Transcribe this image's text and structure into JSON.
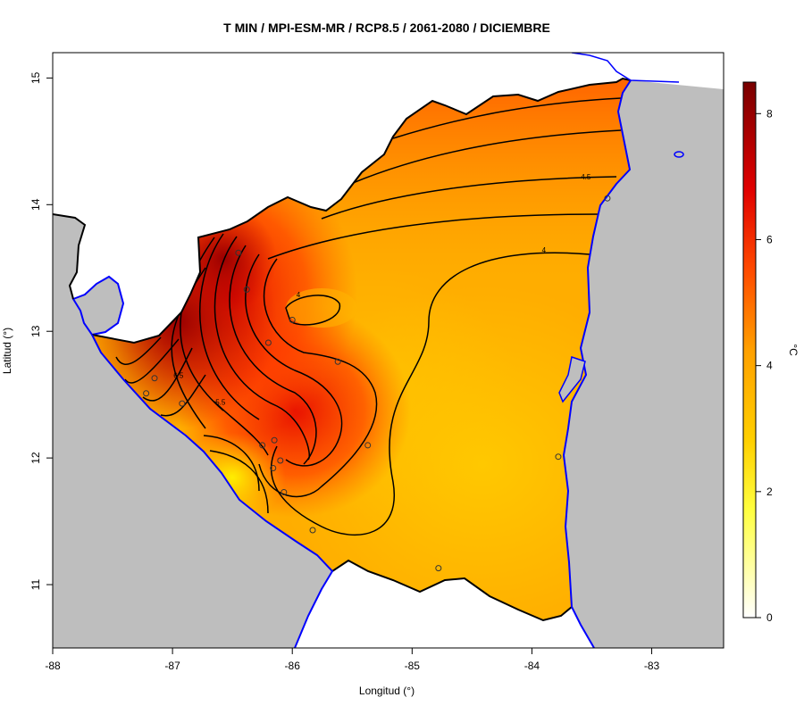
{
  "title": "T MIN / MPI-ESM-MR / RCP8.5 / 2061-2080 / DICIEMBRE",
  "xlabel": "Longitud (°)",
  "ylabel": "Latitud (°)",
  "colorbar": {
    "label": "°C",
    "ticks": [
      "0",
      "2",
      "4",
      "6",
      "8"
    ],
    "range": [
      0,
      8.5
    ],
    "colors": [
      "#ffffff",
      "#ffff00",
      "#ffc400",
      "#ff8c00",
      "#ff2a00",
      "#cc0000",
      "#7a0000"
    ]
  },
  "axes": {
    "x_ticks": [
      "-88",
      "-87",
      "-86",
      "-85",
      "-84",
      "-83"
    ],
    "y_ticks": [
      "11",
      "12",
      "13",
      "14",
      "15"
    ],
    "xlim": [
      -88,
      -82.4
    ],
    "ylim": [
      10.5,
      15.2
    ]
  },
  "colors": {
    "land_neighbors": "#bebebe",
    "coastline": "#0000ff",
    "border": "#000000",
    "contour": "#000000"
  },
  "contour_labels": [
    {
      "text": "4.5",
      "lon": -83.55,
      "lat": 14.2
    },
    {
      "text": "4",
      "lon": -83.9,
      "lat": 13.62
    },
    {
      "text": "4",
      "lon": -85.95,
      "lat": 13.27
    },
    {
      "text": "5.5",
      "lon": -86.6,
      "lat": 12.42
    },
    {
      "text": "6.5",
      "lon": -86.95,
      "lat": 12.63
    }
  ],
  "stations": [
    {
      "lon": -86.45,
      "lat": 13.62
    },
    {
      "lon": -86.38,
      "lat": 13.33
    },
    {
      "lon": -86.0,
      "lat": 13.09
    },
    {
      "lon": -86.2,
      "lat": 12.91
    },
    {
      "lon": -85.62,
      "lat": 12.76
    },
    {
      "lon": -87.15,
      "lat": 12.63
    },
    {
      "lon": -87.22,
      "lat": 12.51
    },
    {
      "lon": -86.92,
      "lat": 12.43
    },
    {
      "lon": -86.25,
      "lat": 12.1
    },
    {
      "lon": -86.15,
      "lat": 12.14
    },
    {
      "lon": -85.37,
      "lat": 12.1
    },
    {
      "lon": -86.1,
      "lat": 11.98
    },
    {
      "lon": -86.16,
      "lat": 11.92
    },
    {
      "lon": -86.07,
      "lat": 11.73
    },
    {
      "lon": -85.83,
      "lat": 11.43
    },
    {
      "lon": -84.78,
      "lat": 11.13
    },
    {
      "lon": -83.78,
      "lat": 12.01
    },
    {
      "lon": -83.37,
      "lat": 14.05
    }
  ]
}
